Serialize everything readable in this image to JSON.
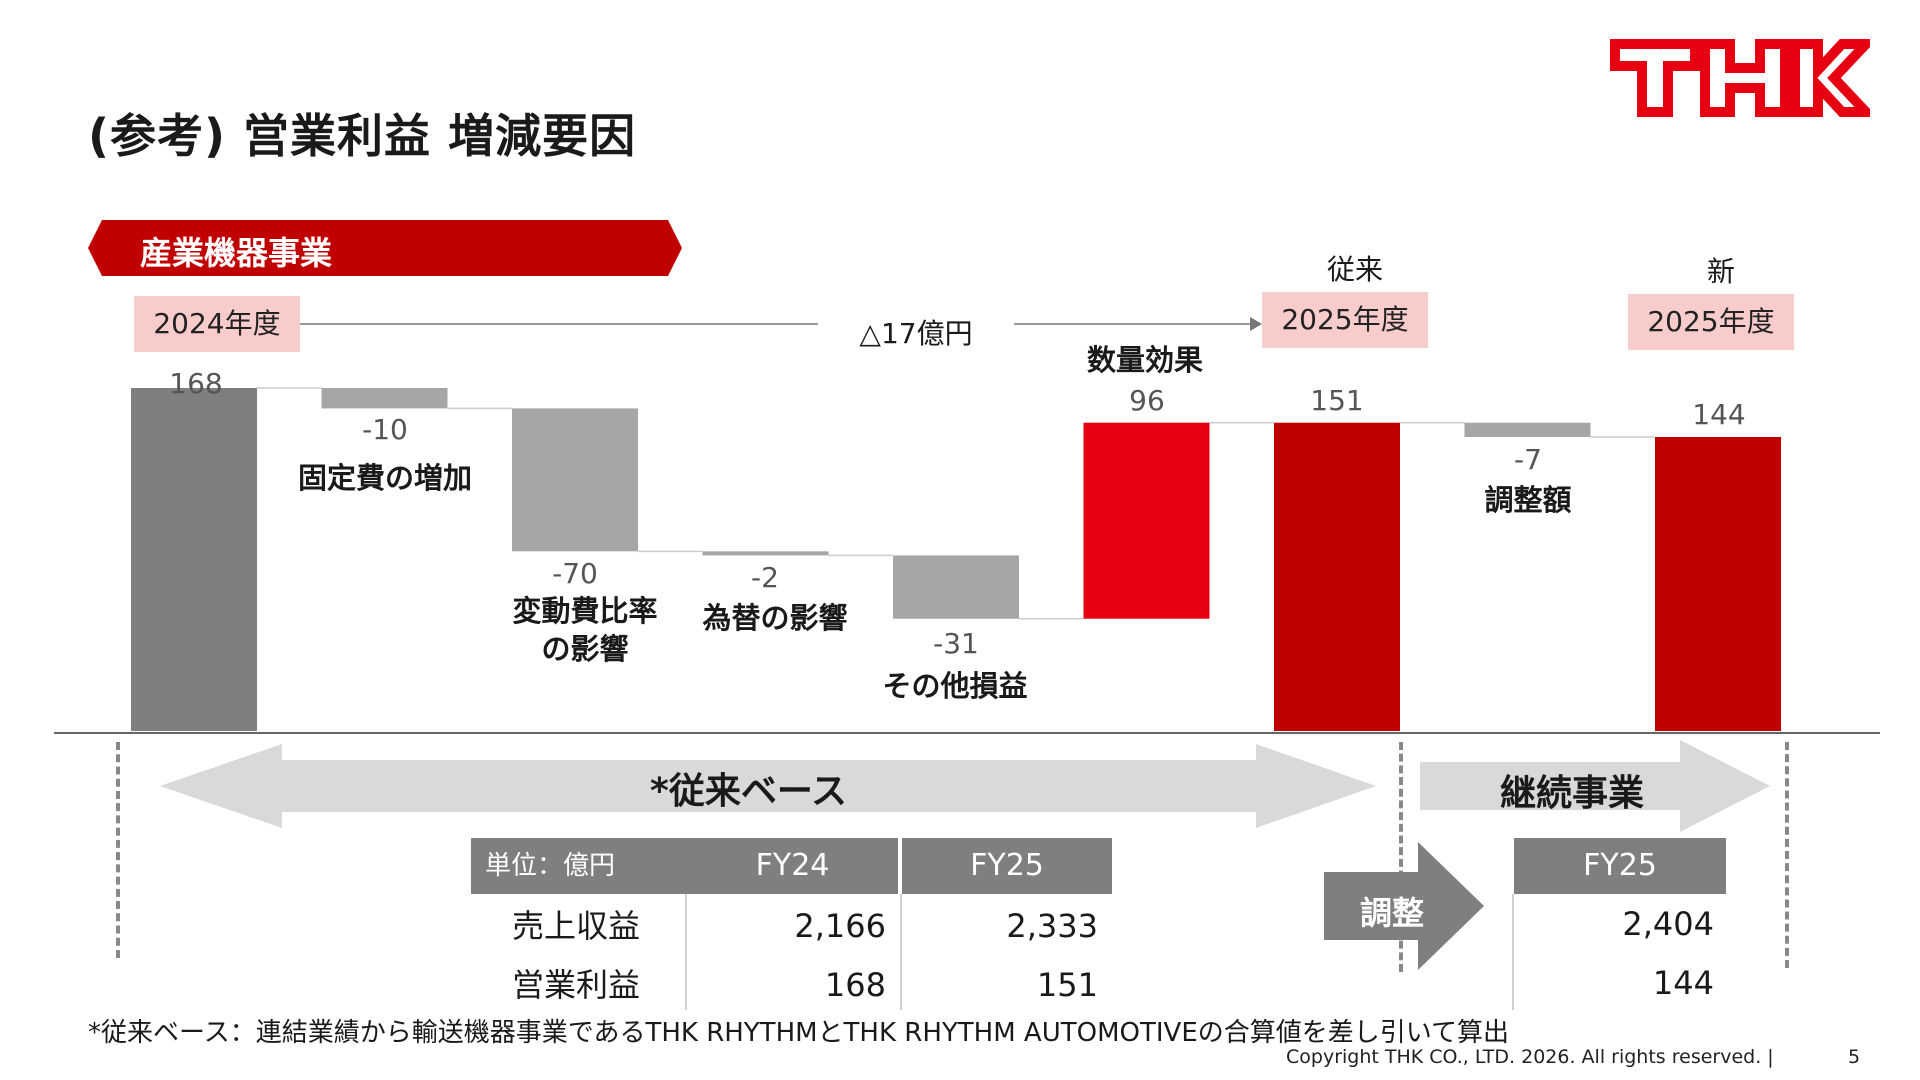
{
  "title": "(参考) 営業利益 増減要因",
  "logo_text": "THK",
  "segment": "産業機器事業",
  "period_labels": {
    "fy24": "2024年度",
    "fy25_old": "2025年度",
    "fy25_new": "2025年度",
    "old": "従来",
    "new": "新"
  },
  "delta_label": "△17億円",
  "chart_data": {
    "type": "bar",
    "subtype": "waterfall",
    "categories": [
      "2024年度",
      "固定費の増加",
      "変動費比率の影響",
      "為替の影響",
      "その他損益",
      "数量効果",
      "2025年度 従来",
      "調整額",
      "2025年度 新"
    ],
    "values": [
      168,
      -10,
      -70,
      -2,
      -31,
      96,
      151,
      -7,
      144
    ],
    "value_labels": [
      "168",
      "-10",
      "-70",
      "-2",
      "-31",
      "96",
      "151",
      "-7",
      "144"
    ],
    "kinds": [
      "total",
      "delta",
      "delta",
      "delta",
      "delta",
      "delta",
      "total",
      "delta",
      "total"
    ],
    "colors": {
      "total_fy24": "#7f7f7f",
      "decrease": "#a6a6a6",
      "increase": "#e60012",
      "total": "#c00000"
    },
    "ylim": [
      0,
      168
    ]
  },
  "annotations": {
    "fixed": "固定費の増加",
    "variable_1": "変動費比率",
    "variable_2": "の影響",
    "fx": "為替の影響",
    "other": "その他損益",
    "volume": "数量効果",
    "adjust": "調整額"
  },
  "base_label": "*従来ベース",
  "continuing_label": "継続事業",
  "adjust_arrow_label": "調整",
  "table_left": {
    "unit": "単位：億円",
    "headers": [
      "FY24",
      "FY25"
    ],
    "rows": [
      {
        "label": "売上収益",
        "values": [
          "2,166",
          "2,333"
        ]
      },
      {
        "label": "営業利益",
        "values": [
          "168",
          "151"
        ]
      }
    ]
  },
  "table_right": {
    "header": "FY25",
    "values": [
      "2,404",
      "144"
    ]
  },
  "footnote": "*従来ベース：連結業績から輸送機器事業であるTHK RHYTHMとTHK RHYTHM AUTOMOTIVEの合算値を差し引いて算出",
  "copyright": "Copyright THK CO., LTD. 2026. All rights reserved.  |",
  "page_number": "5",
  "theme": {
    "brand_red": "#e60012",
    "dark_red": "#c00000"
  }
}
